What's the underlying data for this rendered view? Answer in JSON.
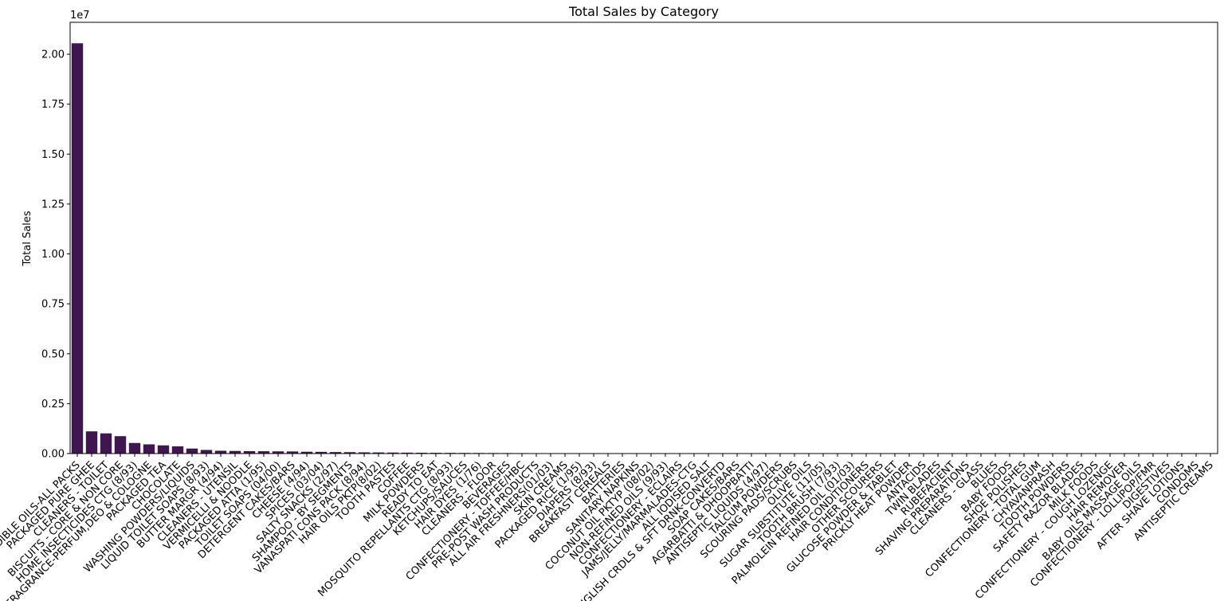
{
  "chart_data": {
    "type": "bar",
    "title": "Total Sales by Category",
    "xlabel": "",
    "ylabel": "Total Sales",
    "offset_label": "1e7",
    "ylim": [
      0,
      21600000
    ],
    "yticks": [
      0,
      2500000,
      5000000,
      7500000,
      10000000,
      12500000,
      15000000,
      17500000,
      20000000
    ],
    "ytick_labels": [
      "0.00",
      "0.25",
      "0.50",
      "0.75",
      "1.00",
      "1.25",
      "1.50",
      "1.75",
      "2.00"
    ],
    "grid": false,
    "bar_color": "#3f164f",
    "categories": [
      "EDIBLE OILS-ALL PACKS",
      "PACKAGED PURE GHEE",
      "CLEANERS - TOILET",
      "BISCUITS - CORE & NON CORE",
      "HOME INSECTICIDES CTG (8/93)",
      "FRAGRANCE-PERFUM,DEO & COLOGNE",
      "PACKAGED TEA",
      "CHOCOLATE",
      "WASHING POWDERS/LIQUIDS",
      "LIQUID TOILET SOAPS (8/93)",
      "BUTTER MARGR (4/94)",
      "CLEANERS - UTENSIL",
      "VERMICELLI & NOODLE",
      "PACKAGED ATTA (1/95)",
      "TOILET SOAPS (04/00)",
      "DETERGENT CAKES/BARS",
      "CHEESE (4/94)",
      "SPICES (03/04)",
      "SALTY SNACKS (2/97)",
      "SHAMPOO - BY SEGMENTS",
      "VANASPATI CONS PACK (8/94)",
      "HAIR OILS PKTP(8/02)",
      "TOOTH PASTES",
      "COFFEE",
      "MILK POWDERS",
      "READY TO EAT",
      "MOSQUITO REPELLANTS CTG (8/93)",
      "KETCHUPS/SAUCES",
      "HAIR DYES (1/76)",
      "CLEANERS - FLOOR",
      "BEVERAGES",
      "CONFECTIONERY - TOFFEE/HBC",
      "PRE-POST WASH PRODUCTS",
      "ALL AIR FRESHNERS(01/03)",
      "SKIN CREAMS",
      "PACKAGED RICE (1/95)",
      "DIAPERS (8/93)",
      "BREAKFAST CEREALS",
      "BATTERIES",
      "SANITARY NAPKINS",
      "COCONUT OIL PKTYP (08/02)",
      "NON-REFINED OILS (9/93)",
      "CONFECTIONERY - ECLAIRS",
      "JAMS/JELLY/MARMALADES-CTG",
      "ALL IODISED SALT",
      "ENGLISH CRDLS & SFT DRNK-CONVERTD",
      "SOAP CAKES/BARS",
      "AGARBATTI & DHOOPBATTI",
      "ANTISEPTIC LIQUIDS (4/97)",
      "TALCUM POWDERS",
      "SCOURING PADS/SCRUBS",
      "OLIVE OILS",
      "SUGAR SUBSTITUTE (11/05)",
      "TOOTH BRUSH (7/93)",
      "PALMOLEIN REFINED OIL (01/03)",
      "HAIR CONDITIONERS",
      "OTHER SCOURERS",
      "GLUCOSE POWDER & TABLET",
      "PRICKLY HEAT POWDER",
      "ANTACIDS",
      "TWIN BLADES",
      "RUBEFACIENT",
      "SHAVING PREPARATIONS",
      "CLEANERS - GLASS",
      "BLUES",
      "BABY FOODS",
      "SHOE POLISHES",
      "CONFECTIONERY - TOTAL GUM",
      "CHYAVANPRASH",
      "TOOTH POWDERS",
      "SAFETY RAZOR BLADES",
      "MILK FOODS",
      "CONFECTIONERY - COUGH LOZENGE",
      "HAIR REMOVER",
      "BABY OILS MASSAGE OILS",
      "CONFECTIONERY - LOLLIPOP/FMR",
      "DIGESTIVES",
      "AFTER SHAVE LOTIONS",
      "CONDOMS",
      "ANTISEPTIC CREAMS"
    ],
    "values": [
      20550000,
      1110000,
      1010000,
      870000,
      530000,
      460000,
      410000,
      360000,
      250000,
      180000,
      140000,
      130000,
      120000,
      115000,
      110000,
      105000,
      90000,
      85000,
      75000,
      70000,
      60000,
      55000,
      50000,
      45000,
      40000,
      36000,
      33000,
      30000,
      28000,
      26000,
      24000,
      22000,
      20000,
      18500,
      17000,
      15500,
      14000,
      13000,
      12000,
      11000,
      10000,
      9500,
      9000,
      8500,
      8000,
      7500,
      7000,
      6500,
      6000,
      5500,
      5200,
      4900,
      4600,
      4300,
      4000,
      3700,
      3400,
      3100,
      2900,
      2700,
      2500,
      2300,
      2100,
      1900,
      1700,
      1500,
      1300,
      1150,
      1000,
      900,
      800,
      700,
      600,
      500,
      420,
      350,
      280,
      200,
      140,
      80
    ]
  }
}
